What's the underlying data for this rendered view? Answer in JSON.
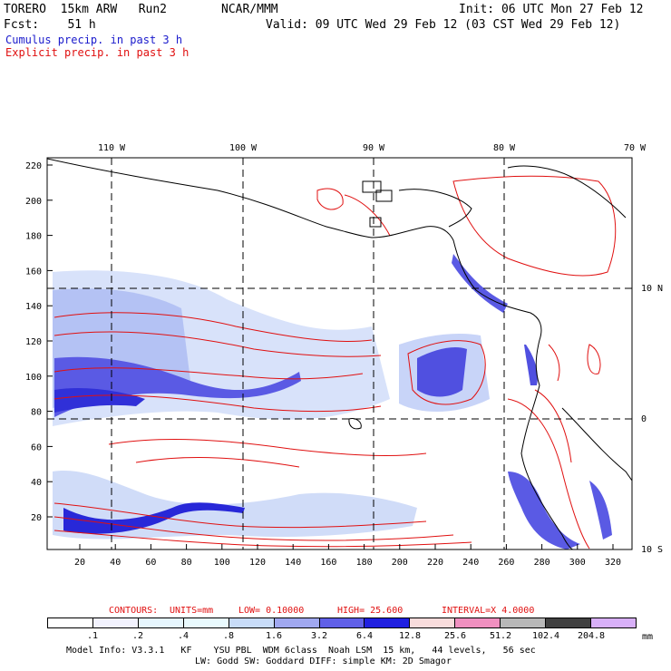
{
  "header": {
    "model": "TORERO  15km ARW   Run2",
    "org": "NCAR/MMM",
    "init": "Init: 06 UTC Mon 27 Feb 12",
    "fcst": "Fcst:    51 h",
    "valid": "Valid: 09 UTC Wed 29 Feb 12 (03 CST Wed 29 Feb 12)",
    "cumulus_label": "Cumulus precip. in past 3 h",
    "explicit_label": "Explicit precip. in past 3 h"
  },
  "map": {
    "top_lon_labels": [
      "110 W",
      "100 W",
      "90 W",
      "80 W",
      "70 W"
    ],
    "right_lat_labels": [
      "10 N",
      "0",
      "10 S"
    ],
    "left_y_ticks": [
      "220",
      "200",
      "180",
      "160",
      "140",
      "120",
      "100",
      "80",
      "60",
      "40",
      "20"
    ],
    "bottom_x_ticks": [
      "20",
      "40",
      "60",
      "80",
      "100",
      "120",
      "140",
      "160",
      "180",
      "200",
      "220",
      "240",
      "260",
      "280",
      "300",
      "320"
    ],
    "colors": {
      "cumulus": "#4a4ae0",
      "cumulus_light": "#c8d4f8",
      "explicit": "#e01010",
      "coast": "#000000"
    }
  },
  "contours": {
    "text_prefix": "CONTOURS:",
    "units": "UNITS=mm",
    "low": "LOW= 0.10000",
    "high": "HIGH=  25.600",
    "interval": "INTERVAL=X  4.0000"
  },
  "colorbar": {
    "labels": [
      ".1",
      ".2",
      ".4",
      ".8",
      "1.6",
      "3.2",
      "6.4",
      "12.8",
      "25.6",
      "51.2",
      "102.4",
      "204.8"
    ],
    "unit": "mm",
    "colors": [
      "#ffffff",
      "#f2f2fe",
      "#e6f6fe",
      "#e9fafe",
      "#c8dcf8",
      "#a0a8f0",
      "#6060e8",
      "#2020e0",
      "#f8dcdc",
      "#f090c0",
      "#b8b8b8",
      "#404040",
      "#d8b0f8"
    ]
  },
  "footer": {
    "line1": "Model Info: V3.3.1   KF    YSU PBL  WDM 6class  Noah LSM  15 km,   44 levels,   56 sec",
    "line2": "LW: Godd SW: Goddard DIFF: simple KM: 2D Smagor"
  }
}
